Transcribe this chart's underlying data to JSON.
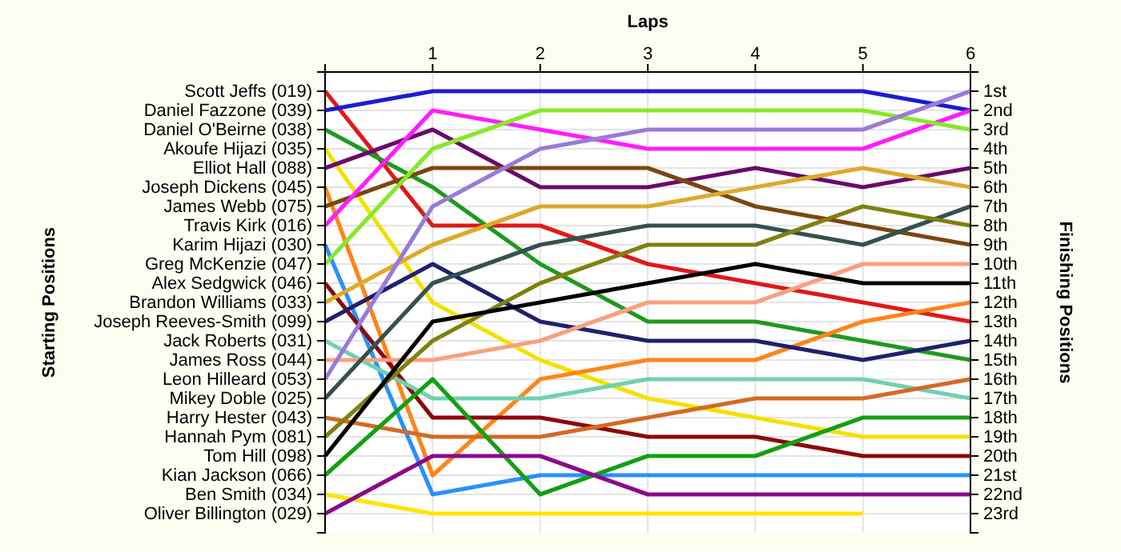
{
  "chart_data": {
    "type": "line",
    "xlabel": "Laps",
    "y2label": "Finishing Positions",
    "x": [
      0,
      1,
      2,
      3,
      4,
      5,
      6
    ],
    "xlim": [
      0,
      6
    ],
    "xticks": [
      1,
      2,
      3,
      4,
      5,
      6
    ],
    "ylim": [
      24,
      0
    ],
    "annotations": [
      "Scott Jeffs (019)",
      "Daniel Fazzone (039)",
      "Daniel O'Beirne (038)",
      "Akoufe Hijazi (035)",
      "Elliot Hall (088)",
      "Joseph Dickens (045)",
      "James Webb (075)",
      "Travis Kirk (016)",
      "Karim Hijazi (030)",
      "Greg McKenzie (047)",
      "Alex Sedgwick (046)",
      "Brandon Williams (033)",
      "Joseph Reeves-Smith (099)",
      "Jack Roberts (031)",
      "James Ross (044)",
      "Leon Hilleard (053)",
      "Mikey Doble (025)",
      "Harry Hester (043)",
      "Hannah Pym (081)",
      "Tom Hill (098)",
      "Kian Jackson (066)",
      "Ben Smith (034)",
      "Oliver Billington (029)",
      "Starting Positions"
    ],
    "yticks": [
      {
        "value": 1,
        "label": "1st"
      },
      {
        "value": 2,
        "label": "2nd"
      },
      {
        "value": 3,
        "label": "3rd"
      },
      {
        "value": 4,
        "label": "4th"
      },
      {
        "value": 5,
        "label": "5th"
      },
      {
        "value": 6,
        "label": "6th"
      },
      {
        "value": 7,
        "label": "7th"
      },
      {
        "value": 8,
        "label": "8th"
      },
      {
        "value": 9,
        "label": "9th"
      },
      {
        "value": 10,
        "label": "10th"
      },
      {
        "value": 11,
        "label": "11th"
      },
      {
        "value": 12,
        "label": "12th"
      },
      {
        "value": 13,
        "label": "13th"
      },
      {
        "value": 14,
        "label": "14th"
      },
      {
        "value": 15,
        "label": "15th"
      },
      {
        "value": 16,
        "label": "16th"
      },
      {
        "value": 17,
        "label": "17th"
      },
      {
        "value": 18,
        "label": "18th"
      },
      {
        "value": 19,
        "label": "19th"
      },
      {
        "value": 20,
        "label": "20th"
      },
      {
        "value": 21,
        "label": "21st"
      },
      {
        "value": 22,
        "label": "22nd"
      },
      {
        "value": 23,
        "label": "23rd"
      }
    ],
    "grid": true,
    "marker": "none",
    "series": [
      {
        "color": "#e01818",
        "values": [
          1,
          8,
          8,
          10,
          11,
          12,
          13
        ]
      },
      {
        "color": "#1c1cd0",
        "values": [
          2,
          1,
          1,
          1,
          1,
          1,
          2
        ]
      },
      {
        "color": "#1e9a1e",
        "values": [
          3,
          6,
          10,
          13,
          13,
          14,
          15
        ]
      },
      {
        "color": "#f5e000",
        "values": [
          4,
          12,
          15,
          17,
          18,
          19,
          19
        ]
      },
      {
        "color": "#6a0a6a",
        "values": [
          5,
          3,
          6,
          6,
          5,
          6,
          5
        ]
      },
      {
        "color": "#ff8418",
        "values": [
          6,
          21,
          16,
          15,
          15,
          13,
          12
        ]
      },
      {
        "color": "#7a4710",
        "values": [
          7,
          5,
          5,
          5,
          7,
          8,
          9
        ]
      },
      {
        "color": "#ff1cff",
        "values": [
          8,
          2,
          3,
          4,
          4,
          4,
          2
        ]
      },
      {
        "color": "#2890ff",
        "values": [
          9,
          22,
          21,
          21,
          21,
          21,
          21
        ]
      },
      {
        "color": "#88e828",
        "values": [
          10,
          4,
          2,
          2,
          2,
          2,
          3
        ]
      },
      {
        "color": "#8b0a0a",
        "values": [
          11,
          18,
          18,
          19,
          19,
          20,
          20
        ]
      },
      {
        "color": "#dcaa28",
        "values": [
          12,
          9,
          7,
          7,
          6,
          5,
          6
        ]
      },
      {
        "color": "#20206e",
        "values": [
          13,
          10,
          13,
          14,
          14,
          15,
          14
        ]
      },
      {
        "color": "#70d0b0",
        "values": [
          14,
          17,
          17,
          16,
          16,
          16,
          17
        ]
      },
      {
        "color": "#f8a080",
        "values": [
          15,
          15,
          14,
          12,
          12,
          10,
          10
        ]
      },
      {
        "color": "#9a7ad8",
        "values": [
          16,
          7,
          4,
          3,
          3,
          3,
          1
        ]
      },
      {
        "color": "#345050",
        "values": [
          17,
          11,
          9,
          8,
          8,
          9,
          7
        ]
      },
      {
        "color": "#d46a24",
        "values": [
          18,
          19,
          19,
          18,
          17,
          17,
          16
        ]
      },
      {
        "color": "#808010",
        "values": [
          19,
          14,
          11,
          9,
          9,
          7,
          8
        ]
      },
      {
        "color": "#000000",
        "values": [
          20,
          13,
          12,
          11,
          10,
          11,
          11
        ]
      },
      {
        "color": "#12a012",
        "values": [
          21,
          16,
          22,
          20,
          20,
          18,
          18
        ]
      },
      {
        "color": "#ffe400",
        "values": [
          22,
          23,
          23,
          23,
          23,
          23,
          null
        ]
      },
      {
        "color": "#8a0a8a",
        "values": [
          23,
          20,
          20,
          22,
          22,
          22,
          22
        ]
      }
    ]
  }
}
